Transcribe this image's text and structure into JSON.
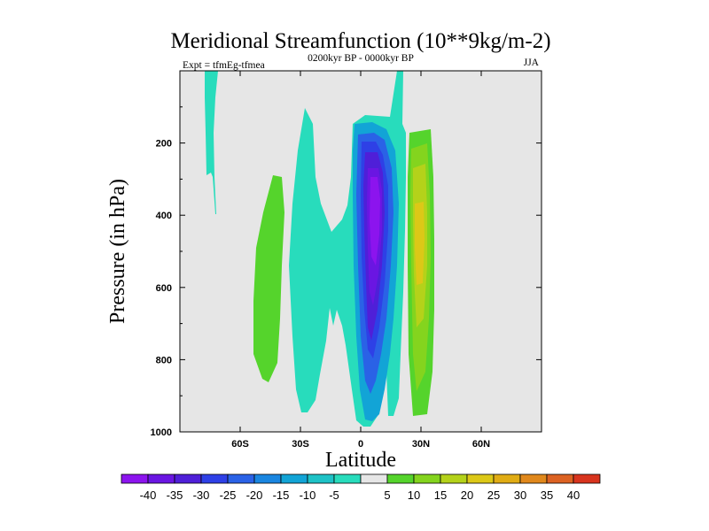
{
  "chart_data": {
    "type": "contour",
    "title": "Meridional Streamfunction (10**9kg/m-2)",
    "left_label": "Expt = tfmEg-tfmea",
    "center_label": "0200kyr BP - 0000kyr BP",
    "right_label": "JJA",
    "xlabel": "Latitude",
    "ylabel": "Pressure (in hPa)",
    "xlim": [
      -90,
      90
    ],
    "ylim": [
      1000,
      0
    ],
    "x_ticks": [
      {
        "value": -60,
        "label": "60S"
      },
      {
        "value": -30,
        "label": "30S"
      },
      {
        "value": 0,
        "label": "0"
      },
      {
        "value": 30,
        "label": "30N"
      },
      {
        "value": 60,
        "label": "60N"
      }
    ],
    "y_ticks": [
      {
        "value": 200,
        "label": "200"
      },
      {
        "value": 400,
        "label": "400"
      },
      {
        "value": 600,
        "label": "600"
      },
      {
        "value": 800,
        "label": "800"
      },
      {
        "value": 1000,
        "label": "1000"
      }
    ],
    "colorbar": {
      "levels": [
        "-40",
        "-35",
        "-30",
        "-25",
        "-20",
        "-15",
        "-10",
        "-5",
        "5",
        "10",
        "15",
        "20",
        "25",
        "30",
        "35",
        "40"
      ],
      "colors": [
        "#8c14ee",
        "#6a16e2",
        "#4f1fd8",
        "#2e40e6",
        "#2a62e6",
        "#1a86e0",
        "#12a4d6",
        "#1ec2c6",
        "#28dcbc",
        "#e6e6e6",
        "#55d42c",
        "#84d41e",
        "#b4d21a",
        "#dcc817",
        "#e0ac14",
        "#e0881c",
        "#dc6222",
        "#d8341e"
      ]
    },
    "background_color": "#e6e6e6",
    "features": [
      {
        "name": "SH polar cyan streak",
        "value": -5,
        "lat_range": [
          -77,
          -70
        ],
        "p_range": [
          0,
          390
        ]
      },
      {
        "name": "SH midlatitude cell",
        "value": 5,
        "lat_range": [
          -55,
          -38
        ],
        "p_range": [
          285,
          860
        ]
      },
      {
        "name": "SH subtropical broad negative",
        "value": -5,
        "lat_range": [
          -40,
          18
        ],
        "p_range": [
          90,
          980
        ]
      },
      {
        "name": "Equatorial core minimum",
        "value": -40,
        "lat": 8,
        "p": 450,
        "min_value": -40
      },
      {
        "name": "NH subtropical positive cell",
        "value": 20,
        "lat": 30,
        "p": 500,
        "max_value": 20
      }
    ]
  }
}
